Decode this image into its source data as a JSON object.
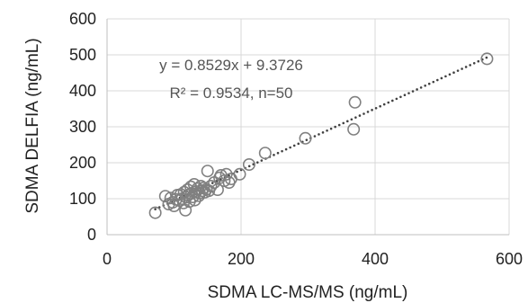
{
  "chart_data": {
    "type": "scatter",
    "xlabel": "SDMA LC-MS/MS (ng/mL)",
    "ylabel": "SDMA DELFIA (ng/mL)",
    "xlim": [
      0,
      600
    ],
    "ylim": [
      0,
      600
    ],
    "xticks": [
      "0",
      "200",
      "400",
      "600"
    ],
    "yticks": [
      "0",
      "100",
      "200",
      "300",
      "400",
      "500",
      "600"
    ],
    "grid": true,
    "annotation": [
      "y = 0.8529x + 9.3726",
      "R² = 0.9534, n=50"
    ],
    "trendline": {
      "slope": 0.8529,
      "intercept": 9.3726,
      "style": "dotted"
    },
    "marker_color": "#808080",
    "trend_color": "#404040",
    "points": [
      [
        72,
        61
      ],
      [
        87,
        107
      ],
      [
        92,
        85
      ],
      [
        95,
        102
      ],
      [
        98,
        90
      ],
      [
        100,
        80
      ],
      [
        103,
        98
      ],
      [
        105,
        110
      ],
      [
        108,
        95
      ],
      [
        110,
        112
      ],
      [
        112,
        100
      ],
      [
        114,
        88
      ],
      [
        115,
        118
      ],
      [
        117,
        68
      ],
      [
        118,
        104
      ],
      [
        120,
        125
      ],
      [
        121,
        110
      ],
      [
        123,
        92
      ],
      [
        125,
        133
      ],
      [
        126,
        115
      ],
      [
        128,
        105
      ],
      [
        130,
        140
      ],
      [
        131,
        96
      ],
      [
        133,
        120
      ],
      [
        135,
        128
      ],
      [
        137,
        108
      ],
      [
        138,
        115
      ],
      [
        140,
        135
      ],
      [
        142,
        122
      ],
      [
        144,
        130
      ],
      [
        146,
        118
      ],
      [
        148,
        126
      ],
      [
        150,
        177
      ],
      [
        152,
        122
      ],
      [
        155,
        135
      ],
      [
        160,
        145
      ],
      [
        165,
        125
      ],
      [
        168,
        158
      ],
      [
        170,
        165
      ],
      [
        175,
        150
      ],
      [
        178,
        168
      ],
      [
        182,
        145
      ],
      [
        185,
        155
      ],
      [
        198,
        168
      ],
      [
        212,
        195
      ],
      [
        236,
        227
      ],
      [
        296,
        268
      ],
      [
        368,
        293
      ],
      [
        370,
        368
      ],
      [
        567,
        489
      ]
    ]
  }
}
